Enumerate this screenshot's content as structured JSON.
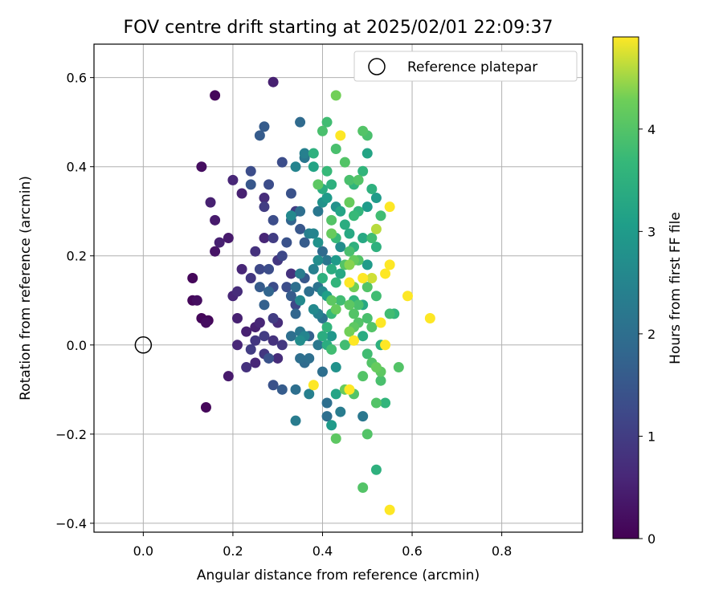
{
  "chart_data": {
    "type": "scatter",
    "title": "FOV centre drift starting at 2025/02/01 22:09:37",
    "xlabel": "Angular distance from reference (arcmin)",
    "ylabel": "Rotation from reference (arcmin)",
    "colorbar_label": "Hours from first FF file",
    "xlim": [
      -0.11,
      0.98
    ],
    "ylim": [
      -0.42,
      0.675
    ],
    "x_ticks": [
      0.0,
      0.2,
      0.4,
      0.6,
      0.8
    ],
    "y_ticks": [
      -0.4,
      -0.2,
      0.0,
      0.2,
      0.4,
      0.6
    ],
    "x_tick_labels": [
      "0.0",
      "0.2",
      "0.4",
      "0.6",
      "0.8"
    ],
    "y_tick_labels": [
      "−0.4",
      "−0.2",
      "0.0",
      "0.2",
      "0.4",
      "0.6"
    ],
    "color_range": [
      0,
      4.9
    ],
    "colorbar_ticks": [
      0,
      1,
      2,
      3,
      4
    ],
    "colorbar_tick_labels": [
      "0",
      "1",
      "2",
      "3",
      "4"
    ],
    "colormap": "viridis",
    "grid": true,
    "legend": {
      "location": "upper-right",
      "entries": [
        "Reference platepar"
      ]
    },
    "reference_point": {
      "x": 0.0,
      "y": 0.0,
      "marker": "open-circle"
    },
    "points": [
      [
        0.11,
        0.15,
        0.1
      ],
      [
        0.11,
        0.1,
        0.1
      ],
      [
        0.12,
        0.1,
        0.2
      ],
      [
        0.13,
        0.06,
        0.1
      ],
      [
        0.14,
        0.05,
        0.2
      ],
      [
        0.145,
        0.055,
        0.1
      ],
      [
        0.14,
        -0.14,
        0.1
      ],
      [
        0.16,
        0.56,
        0.1
      ],
      [
        0.13,
        0.4,
        0.2
      ],
      [
        0.15,
        0.32,
        0.5
      ],
      [
        0.16,
        0.28,
        0.4
      ],
      [
        0.17,
        0.23,
        0.5
      ],
      [
        0.16,
        0.21,
        0.3
      ],
      [
        0.19,
        0.24,
        0.4
      ],
      [
        0.2,
        0.37,
        0.6
      ],
      [
        0.22,
        0.34,
        0.5
      ],
      [
        0.22,
        0.17,
        0.6
      ],
      [
        0.21,
        0.12,
        0.7
      ],
      [
        0.2,
        0.11,
        0.6
      ],
      [
        0.21,
        0.06,
        0.5
      ],
      [
        0.23,
        0.03,
        0.5
      ],
      [
        0.21,
        0.0,
        0.6
      ],
      [
        0.23,
        -0.05,
        0.8
      ],
      [
        0.19,
        -0.07,
        0.4
      ],
      [
        0.24,
        0.15,
        0.9
      ],
      [
        0.25,
        0.21,
        0.8
      ],
      [
        0.24,
        0.39,
        1.3
      ],
      [
        0.24,
        0.36,
        1.5
      ],
      [
        0.26,
        0.47,
        1.6
      ],
      [
        0.27,
        0.49,
        1.6
      ],
      [
        0.28,
        0.36,
        1.3
      ],
      [
        0.27,
        0.33,
        0.7
      ],
      [
        0.27,
        0.31,
        1.0
      ],
      [
        0.27,
        0.24,
        0.6
      ],
      [
        0.26,
        0.17,
        1.2
      ],
      [
        0.26,
        0.13,
        1.6
      ],
      [
        0.27,
        0.09,
        1.7
      ],
      [
        0.28,
        0.12,
        1.8
      ],
      [
        0.28,
        0.17,
        1.3
      ],
      [
        0.25,
        0.04,
        0.5
      ],
      [
        0.26,
        0.05,
        0.6
      ],
      [
        0.27,
        0.02,
        1.0
      ],
      [
        0.25,
        0.01,
        0.9
      ],
      [
        0.25,
        -0.04,
        0.6
      ],
      [
        0.24,
        -0.01,
        1.0
      ],
      [
        0.27,
        -0.02,
        0.9
      ],
      [
        0.28,
        -0.03,
        1.4
      ],
      [
        0.29,
        0.59,
        0.5
      ],
      [
        0.31,
        0.41,
        1.3
      ],
      [
        0.29,
        0.28,
        1.3
      ],
      [
        0.29,
        0.24,
        1.0
      ],
      [
        0.31,
        0.2,
        1.2
      ],
      [
        0.3,
        0.19,
        0.9
      ],
      [
        0.29,
        0.13,
        1.3
      ],
      [
        0.29,
        0.06,
        1.0
      ],
      [
        0.3,
        0.05,
        0.7
      ],
      [
        0.29,
        0.01,
        0.8
      ],
      [
        0.31,
        0.0,
        0.9
      ],
      [
        0.3,
        -0.03,
        0.7
      ],
      [
        0.29,
        -0.09,
        1.4
      ],
      [
        0.31,
        -0.1,
        1.6
      ],
      [
        0.33,
        0.34,
        1.4
      ],
      [
        0.34,
        0.4,
        2.5
      ],
      [
        0.35,
        0.5,
        1.9
      ],
      [
        0.36,
        0.43,
        2.4
      ],
      [
        0.36,
        0.42,
        2.2
      ],
      [
        0.32,
        0.23,
        1.4
      ],
      [
        0.33,
        0.28,
        1.8
      ],
      [
        0.33,
        0.29,
        2.6
      ],
      [
        0.34,
        0.3,
        1.0
      ],
      [
        0.35,
        0.3,
        2.0
      ],
      [
        0.35,
        0.26,
        1.5
      ],
      [
        0.36,
        0.23,
        1.6
      ],
      [
        0.37,
        0.25,
        2.4
      ],
      [
        0.33,
        0.16,
        0.8
      ],
      [
        0.32,
        0.13,
        1.3
      ],
      [
        0.33,
        0.11,
        1.6
      ],
      [
        0.34,
        0.09,
        1.2
      ],
      [
        0.35,
        0.1,
        2.6
      ],
      [
        0.34,
        0.13,
        2.0
      ],
      [
        0.35,
        0.16,
        2.3
      ],
      [
        0.36,
        0.15,
        1.5
      ],
      [
        0.37,
        0.12,
        2.0
      ],
      [
        0.34,
        0.07,
        1.8
      ],
      [
        0.33,
        0.02,
        2.0
      ],
      [
        0.35,
        0.03,
        2.2
      ],
      [
        0.35,
        0.01,
        2.7
      ],
      [
        0.36,
        0.02,
        2.5
      ],
      [
        0.37,
        0.02,
        1.7
      ],
      [
        0.37,
        -0.03,
        2.0
      ],
      [
        0.35,
        -0.03,
        2.0
      ],
      [
        0.34,
        -0.1,
        2.0
      ],
      [
        0.37,
        -0.11,
        2.4
      ],
      [
        0.34,
        -0.17,
        2.3
      ],
      [
        0.36,
        -0.04,
        1.9
      ],
      [
        0.38,
        0.4,
        3.2
      ],
      [
        0.38,
        0.43,
        3.5
      ],
      [
        0.39,
        0.36,
        4.1
      ],
      [
        0.4,
        0.35,
        3.4
      ],
      [
        0.41,
        0.33,
        3.0
      ],
      [
        0.4,
        0.32,
        2.8
      ],
      [
        0.39,
        0.3,
        2.2
      ],
      [
        0.38,
        0.25,
        2.5
      ],
      [
        0.39,
        0.23,
        2.8
      ],
      [
        0.4,
        0.21,
        1.9
      ],
      [
        0.41,
        0.19,
        2.2
      ],
      [
        0.39,
        0.19,
        2.7
      ],
      [
        0.38,
        0.17,
        2.4
      ],
      [
        0.4,
        0.15,
        3.5
      ],
      [
        0.39,
        0.13,
        2.1
      ],
      [
        0.4,
        0.12,
        2.6
      ],
      [
        0.41,
        0.11,
        3.1
      ],
      [
        0.38,
        0.08,
        2.6
      ],
      [
        0.39,
        0.07,
        2.4
      ],
      [
        0.4,
        0.06,
        2.1
      ],
      [
        0.41,
        0.04,
        3.6
      ],
      [
        0.42,
        0.02,
        2.9
      ],
      [
        0.4,
        0.02,
        3.4
      ],
      [
        0.39,
        0.0,
        2.2
      ],
      [
        0.4,
        -0.06,
        2.0
      ],
      [
        0.38,
        -0.09,
        4.9
      ],
      [
        0.41,
        -0.13,
        2.0
      ],
      [
        0.41,
        -0.16,
        2.0
      ],
      [
        0.42,
        -0.18,
        3.0
      ],
      [
        0.43,
        -0.21,
        4.1
      ],
      [
        0.4,
        0.48,
        3.9
      ],
      [
        0.41,
        0.5,
        3.8
      ],
      [
        0.43,
        0.56,
        4.3
      ],
      [
        0.44,
        0.47,
        4.9
      ],
      [
        0.43,
        0.44,
        3.9
      ],
      [
        0.41,
        0.39,
        3.7
      ],
      [
        0.42,
        0.36,
        3.5
      ],
      [
        0.43,
        0.31,
        2.8
      ],
      [
        0.44,
        0.3,
        3.2
      ],
      [
        0.42,
        0.28,
        4.0
      ],
      [
        0.42,
        0.25,
        4.2
      ],
      [
        0.43,
        0.24,
        3.7
      ],
      [
        0.44,
        0.22,
        2.7
      ],
      [
        0.43,
        0.19,
        3.0
      ],
      [
        0.42,
        0.17,
        3.4
      ],
      [
        0.44,
        0.16,
        3.3
      ],
      [
        0.43,
        0.14,
        3.6
      ],
      [
        0.42,
        0.1,
        4.1
      ],
      [
        0.44,
        0.1,
        3.8
      ],
      [
        0.43,
        0.08,
        4.2
      ],
      [
        0.42,
        0.07,
        3.7
      ],
      [
        0.41,
        0.0,
        3.4
      ],
      [
        0.42,
        -0.01,
        3.8
      ],
      [
        0.43,
        -0.05,
        2.8
      ],
      [
        0.43,
        -0.11,
        3.2
      ],
      [
        0.44,
        -0.15,
        2.3
      ],
      [
        0.45,
        0.41,
        4.0
      ],
      [
        0.46,
        0.37,
        3.9
      ],
      [
        0.47,
        0.36,
        3.6
      ],
      [
        0.48,
        0.37,
        4.0
      ],
      [
        0.46,
        0.32,
        4.2
      ],
      [
        0.47,
        0.29,
        3.7
      ],
      [
        0.48,
        0.3,
        3.6
      ],
      [
        0.45,
        0.27,
        3.4
      ],
      [
        0.46,
        0.25,
        3.3
      ],
      [
        0.47,
        0.22,
        3.5
      ],
      [
        0.46,
        0.21,
        3.9
      ],
      [
        0.45,
        0.18,
        4.0
      ],
      [
        0.46,
        0.18,
        4.4
      ],
      [
        0.47,
        0.19,
        4.2
      ],
      [
        0.48,
        0.19,
        4.0
      ],
      [
        0.46,
        0.14,
        4.9
      ],
      [
        0.47,
        0.13,
        4.3
      ],
      [
        0.47,
        0.1,
        3.6
      ],
      [
        0.46,
        0.09,
        4.1
      ],
      [
        0.47,
        0.07,
        4.0
      ],
      [
        0.48,
        0.09,
        3.9
      ],
      [
        0.46,
        0.03,
        4.3
      ],
      [
        0.47,
        0.01,
        4.9
      ],
      [
        0.45,
        0.0,
        3.8
      ],
      [
        0.47,
        0.04,
        4.1
      ],
      [
        0.48,
        0.05,
        4.0
      ],
      [
        0.45,
        -0.1,
        4.2
      ],
      [
        0.47,
        -0.11,
        4.0
      ],
      [
        0.46,
        -0.1,
        4.9
      ],
      [
        0.49,
        0.48,
        4.0
      ],
      [
        0.5,
        0.47,
        3.9
      ],
      [
        0.5,
        0.43,
        3.2
      ],
      [
        0.49,
        0.39,
        3.6
      ],
      [
        0.51,
        0.35,
        3.5
      ],
      [
        0.52,
        0.33,
        3.0
      ],
      [
        0.5,
        0.31,
        3.0
      ],
      [
        0.49,
        0.24,
        3.3
      ],
      [
        0.51,
        0.24,
        3.8
      ],
      [
        0.52,
        0.22,
        3.5
      ],
      [
        0.5,
        0.18,
        3.0
      ],
      [
        0.49,
        0.15,
        4.9
      ],
      [
        0.51,
        0.15,
        4.7
      ],
      [
        0.5,
        0.13,
        4.0
      ],
      [
        0.52,
        0.11,
        3.8
      ],
      [
        0.49,
        0.09,
        3.3
      ],
      [
        0.5,
        0.06,
        3.9
      ],
      [
        0.51,
        0.04,
        4.0
      ],
      [
        0.49,
        0.02,
        3.4
      ],
      [
        0.5,
        -0.02,
        3.8
      ],
      [
        0.51,
        -0.04,
        4.0
      ],
      [
        0.52,
        -0.05,
        4.2
      ],
      [
        0.49,
        -0.07,
        4.0
      ],
      [
        0.49,
        -0.16,
        2.2
      ],
      [
        0.5,
        -0.2,
        4.0
      ],
      [
        0.52,
        -0.28,
        3.5
      ],
      [
        0.49,
        -0.32,
        4.0
      ],
      [
        0.52,
        0.26,
        4.6
      ],
      [
        0.53,
        0.29,
        3.8
      ],
      [
        0.54,
        0.16,
        4.9
      ],
      [
        0.53,
        0.05,
        4.9
      ],
      [
        0.53,
        0.0,
        3.5
      ],
      [
        0.54,
        0.0,
        4.9
      ],
      [
        0.53,
        -0.06,
        4.1
      ],
      [
        0.53,
        -0.08,
        3.9
      ],
      [
        0.52,
        -0.13,
        4.0
      ],
      [
        0.54,
        -0.13,
        3.6
      ],
      [
        0.55,
        0.18,
        4.9
      ],
      [
        0.55,
        0.31,
        4.9
      ],
      [
        0.55,
        0.07,
        3.8
      ],
      [
        0.56,
        0.07,
        3.6
      ],
      [
        0.57,
        -0.05,
        4.0
      ],
      [
        0.55,
        -0.37,
        4.9
      ],
      [
        0.59,
        0.11,
        4.9
      ],
      [
        0.64,
        0.06,
        4.9
      ]
    ]
  }
}
